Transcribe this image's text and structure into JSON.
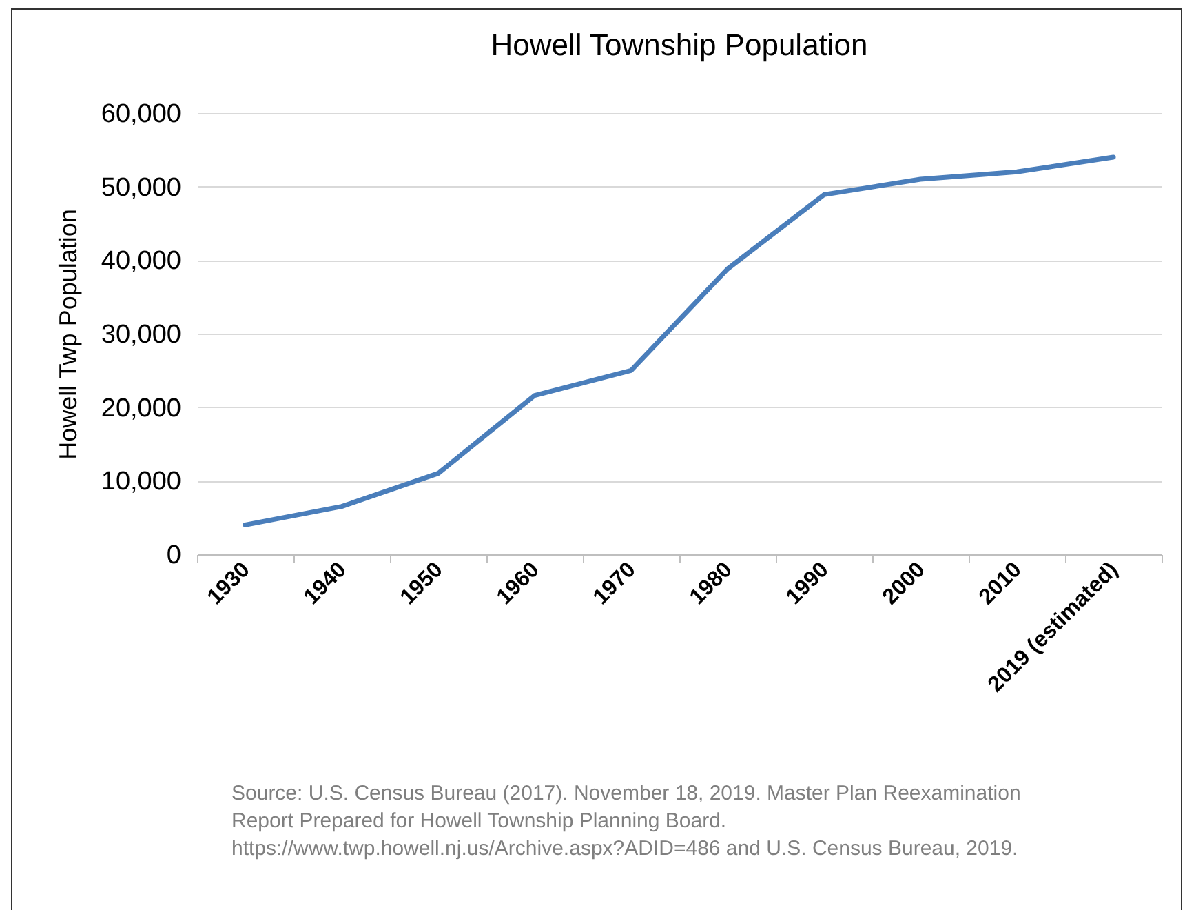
{
  "chart_data": {
    "type": "line",
    "title": "Howell Township Population",
    "ylabel": "Howell Twp Population",
    "categories": [
      "1930",
      "1940",
      "1950",
      "1960",
      "1970",
      "1980",
      "1990",
      "2000",
      "2010",
      "2019 (estimated)"
    ],
    "series": [
      {
        "color": "#4a7ebb",
        "values": [
          4000,
          6500,
          11000,
          21600,
          25000,
          38800,
          48900,
          51000,
          52000,
          54000
        ]
      }
    ],
    "ylim": [
      0,
      60000
    ],
    "yticks": [
      0,
      {
        "value": 10000,
        "label": "10,000"
      },
      {
        "value": 20000,
        "label": "20,000"
      },
      {
        "value": 30000,
        "label": "30,000"
      },
      {
        "value": 40000,
        "label": "40,000"
      },
      {
        "value": 50000,
        "label": "50,000"
      },
      {
        "value": 60000,
        "label": "60,000"
      }
    ],
    "grid": "y",
    "marker": "none",
    "line_style": "solid",
    "annotations": [
      "Source: U.S. Census Bureau (2017). November 18, 2019. Master Plan Reexamination  Report Prepared for Howell Township Planning Board. https://www.twp.howell.nj.us/Archive.aspx?ADID=486 and U.S. Census Bureau, 2019."
    ]
  }
}
